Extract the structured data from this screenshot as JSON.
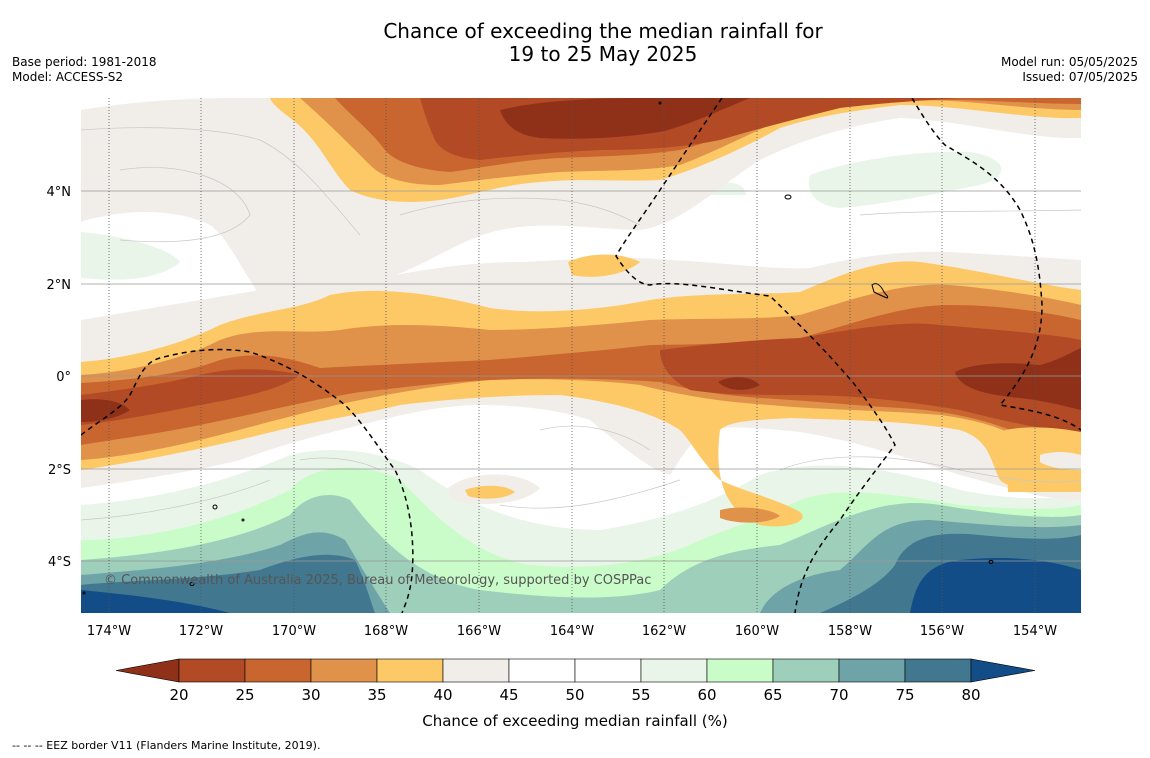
{
  "title_line1": "Chance of exceeding the median rainfall for",
  "title_line2": "19 to 25 May 2025",
  "base_period": "Base period: 1981-2018",
  "model": "Model: ACCESS-S2",
  "model_run": "Model run: 05/05/2025",
  "issued": "Issued: 07/05/2025",
  "copyright": "© Commonwealth of Australia 2025, Bureau of Meteorology, supported by COSPPac",
  "footnote": "--  --  -- EEZ border V11 (Flanders Marine Institute, 2019).",
  "lon_labels": [
    "174°W",
    "172°W",
    "170°W",
    "168°W",
    "166°W",
    "164°W",
    "162°W",
    "160°W",
    "158°W",
    "156°W",
    "154°W"
  ],
  "lat_labels": [
    "4°N",
    "2°N",
    "0°",
    "2°S",
    "4°S"
  ],
  "colorbar": {
    "label": "Chance of exceeding median rainfall (%)",
    "ticks": [
      "20",
      "25",
      "30",
      "35",
      "40",
      "45",
      "50",
      "55",
      "60",
      "65",
      "70",
      "75",
      "80"
    ],
    "colors": [
      "#8f3119",
      "#b34a26",
      "#c9652f",
      "#e0924a",
      "#fdc966",
      "#f1ede8",
      "#ffffff",
      "#ffffff",
      "#eaf5ea",
      "#c9fcc8",
      "#9dcfbb",
      "#6ea4a8",
      "#41788f",
      "#134d88"
    ]
  }
}
